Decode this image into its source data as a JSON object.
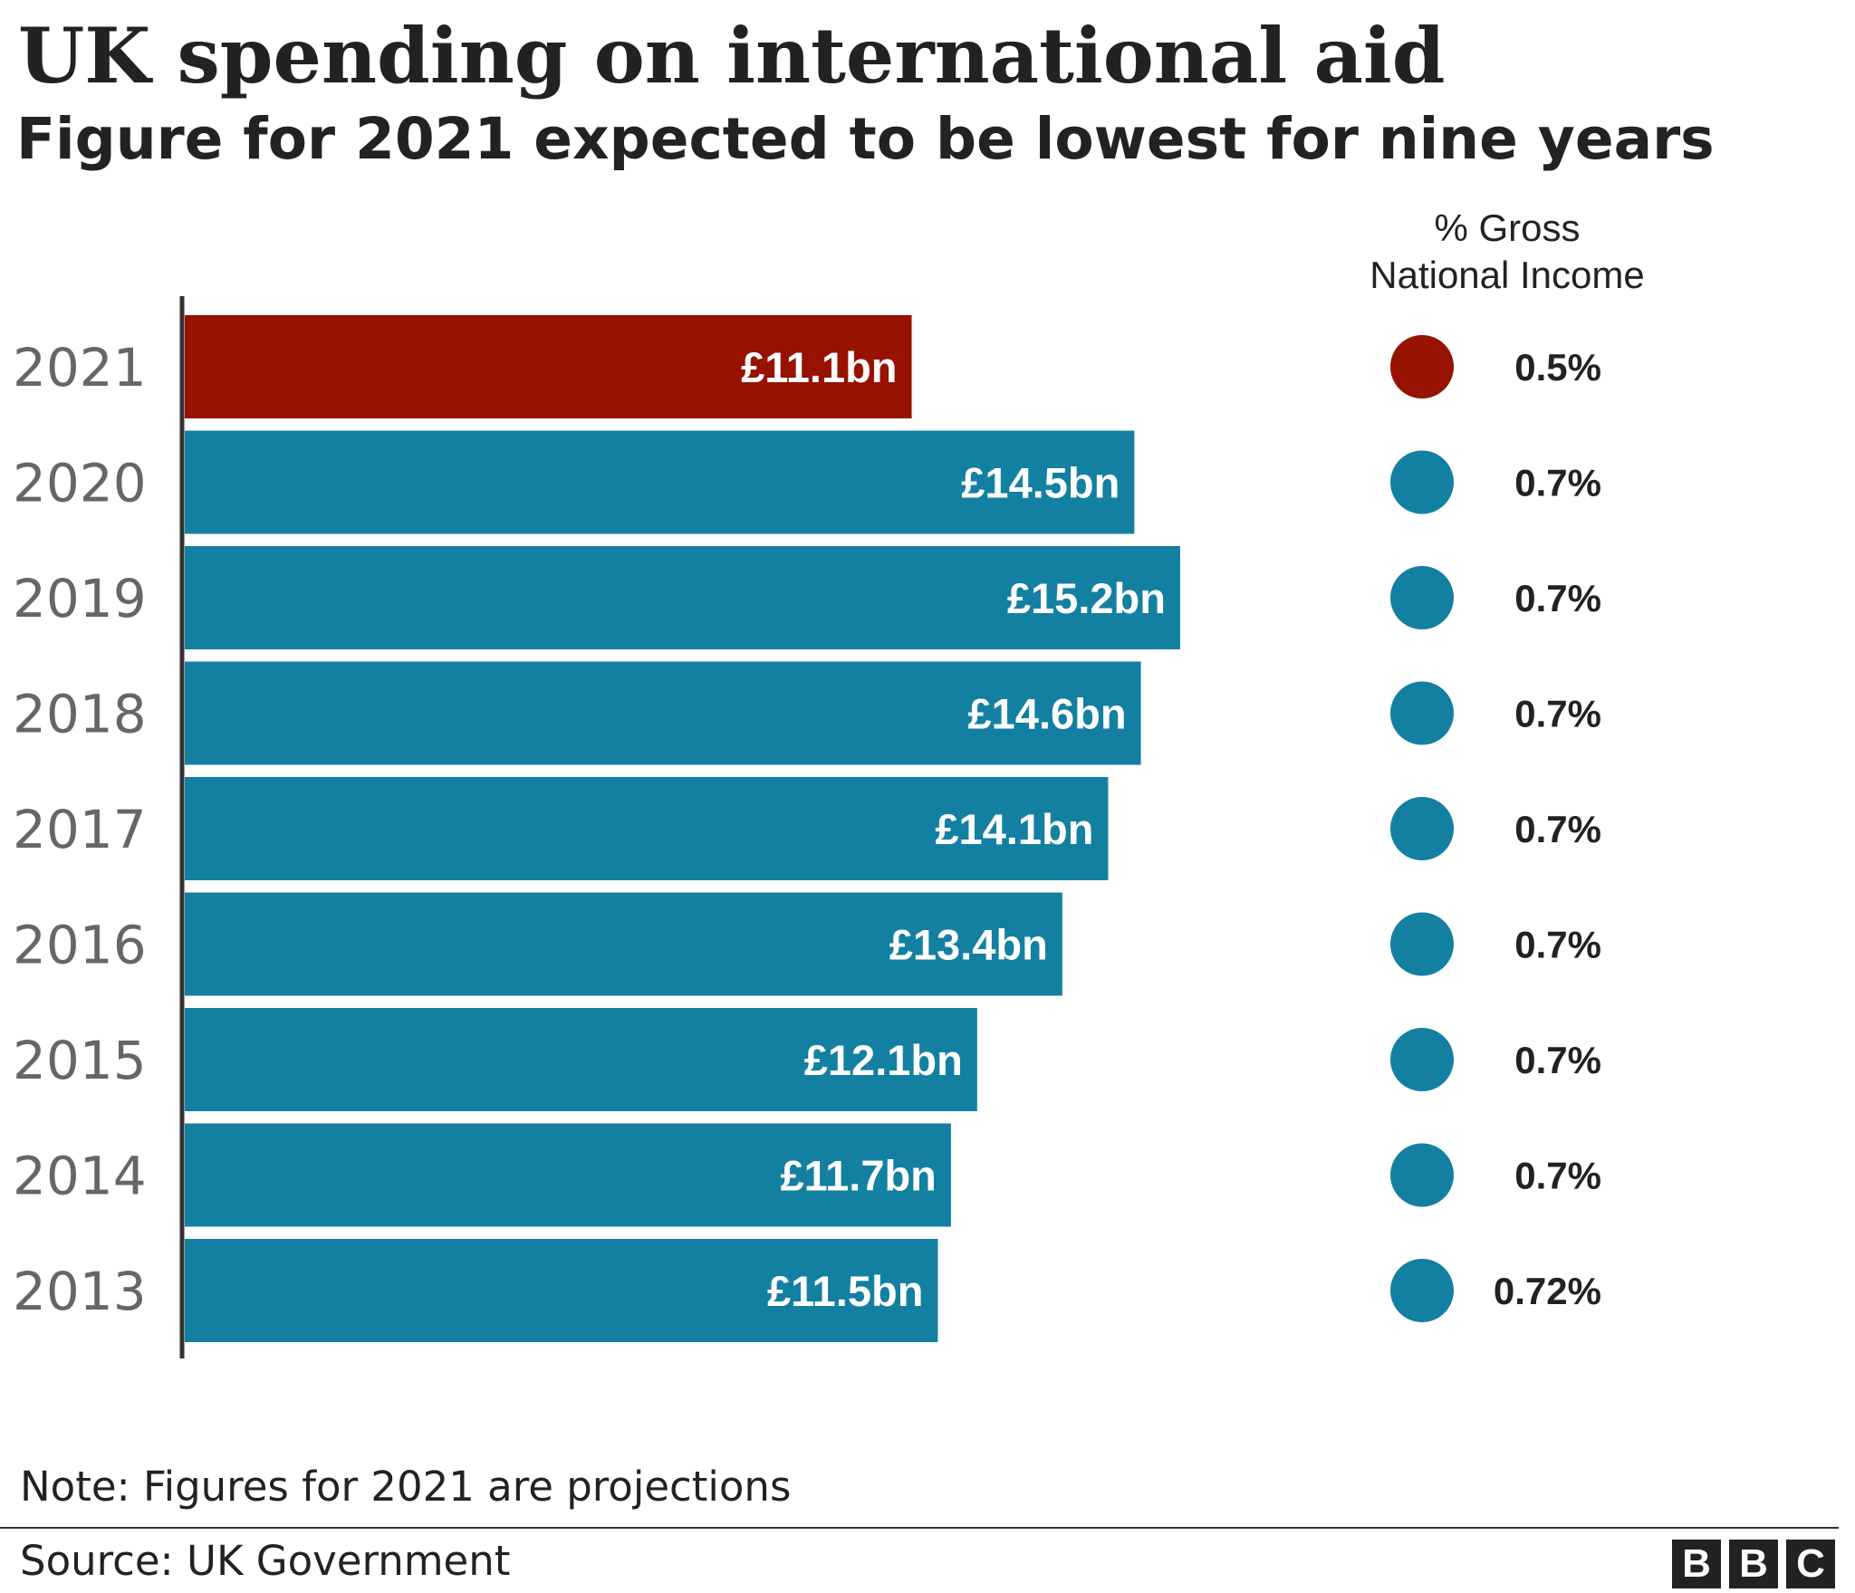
{
  "chart_data": {
    "type": "bar",
    "orientation": "horizontal",
    "title": "UK spending on international aid",
    "subtitle": "Figure for 2021 expected to be lowest for nine years",
    "categories": [
      "2021",
      "2020",
      "2019",
      "2018",
      "2017",
      "2016",
      "2015",
      "2014",
      "2013"
    ],
    "values": [
      11.1,
      14.5,
      15.2,
      14.6,
      14.1,
      13.4,
      12.1,
      11.7,
      11.5
    ],
    "value_labels": [
      "£11.1bn",
      "£14.5bn",
      "£15.2bn",
      "£14.6bn",
      "£14.1bn",
      "£13.4bn",
      "£12.1bn",
      "£11.7bn",
      "£11.5bn"
    ],
    "highlight_category": "2021",
    "gni": {
      "header_line1": "% Gross",
      "header_line2": "National Income",
      "values": [
        0.5,
        0.7,
        0.7,
        0.7,
        0.7,
        0.7,
        0.7,
        0.7,
        0.72
      ],
      "labels": [
        "0.5%",
        "0.7%",
        "0.7%",
        "0.7%",
        "0.7%",
        "0.7%",
        "0.7%",
        "0.7%",
        "0.72%"
      ]
    },
    "xlim": [
      0,
      20
    ],
    "grid": false,
    "colors": {
      "highlight": "#971200",
      "default": "#1380a1"
    }
  },
  "note": "Note: Figures for 2021 are projections",
  "source": "Source: UK Government",
  "logo": {
    "letters": [
      "B",
      "B",
      "C"
    ]
  }
}
